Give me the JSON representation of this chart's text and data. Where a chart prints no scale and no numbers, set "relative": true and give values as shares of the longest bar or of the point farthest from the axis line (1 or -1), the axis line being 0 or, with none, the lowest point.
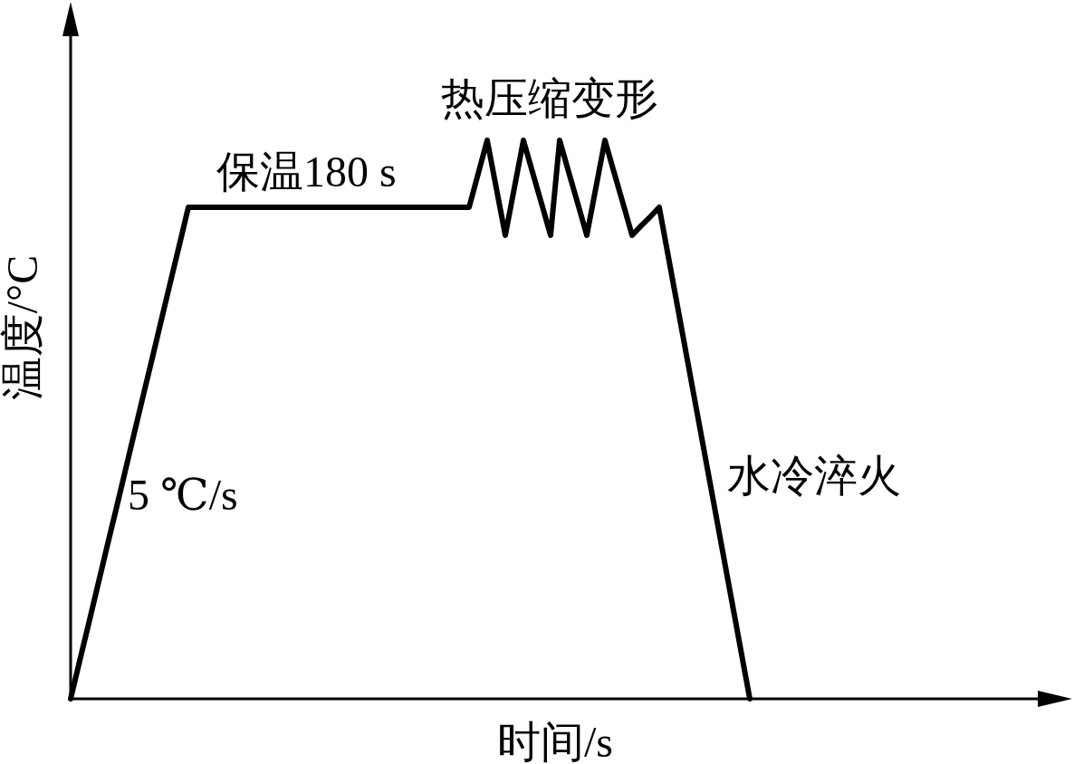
{
  "chart_data": {
    "type": "line",
    "relative": true,
    "xlabel": "时间/s",
    "ylabel": "温度/°C",
    "annotations": [
      "保温180 s",
      "热压缩变形",
      "5 ℃/s",
      "水冷淬火"
    ],
    "color": "#000000",
    "categories": [
      null,
      null,
      null,
      null,
      null,
      null,
      null,
      null,
      null,
      null,
      null,
      null,
      null,
      null,
      null,
      null,
      null,
      null,
      null,
      null,
      null,
      null,
      null,
      null,
      null,
      null,
      null,
      null,
      null,
      null,
      null,
      null,
      null,
      null,
      null,
      null,
      null,
      null,
      null,
      null,
      null,
      null,
      null,
      null,
      null,
      null,
      null,
      null,
      null,
      null,
      null,
      null,
      null,
      null,
      null,
      null,
      null,
      null,
      null,
      null,
      null,
      null,
      null,
      null,
      null,
      null,
      null,
      null,
      null,
      null,
      null,
      null,
      null,
      null,
      null,
      null,
      null,
      null,
      null,
      null,
      null,
      null,
      null,
      null,
      null,
      null,
      null,
      null,
      null,
      null,
      null,
      null,
      null,
      null,
      null,
      null,
      null,
      null,
      null,
      null,
      null,
      null,
      null,
      null,
      null,
      null,
      null,
      null
    ],
    "values": [
      0,
      0.068,
      0.135,
      0.203,
      0.271,
      0.338,
      0.406,
      0.474,
      0.542,
      0.609,
      0.677,
      0.745,
      0.812,
      0.88,
      0.88,
      0.88,
      0.88,
      0.88,
      0.88,
      0.88,
      0.88,
      0.88,
      0.88,
      0.88,
      0.88,
      0.88,
      0.88,
      0.88,
      0.88,
      0.88,
      0.88,
      0.88,
      0.88,
      0.88,
      0.88,
      0.88,
      0.88,
      0.88,
      0.88,
      0.88,
      0.88,
      0.88,
      0.88,
      0.88,
      0.88,
      0.94,
      1,
      0.915,
      0.83,
      0.915,
      1,
      0.943,
      0.887,
      0.83,
      1,
      0.943,
      0.887,
      0.83,
      0.915,
      1,
      0.943,
      0.887,
      0.83,
      0.847,
      0.863,
      0.88,
      0.792,
      0.704,
      0.616,
      0.528,
      0.44,
      0.352,
      0.264,
      0.176,
      0.088,
      0,
      null,
      null,
      null,
      null,
      null,
      null,
      null,
      null,
      null,
      null,
      null,
      null,
      null,
      null,
      null,
      null,
      null,
      null,
      null,
      null,
      null,
      null,
      null,
      null,
      null,
      null,
      null,
      null,
      null,
      null,
      null,
      null
    ]
  }
}
